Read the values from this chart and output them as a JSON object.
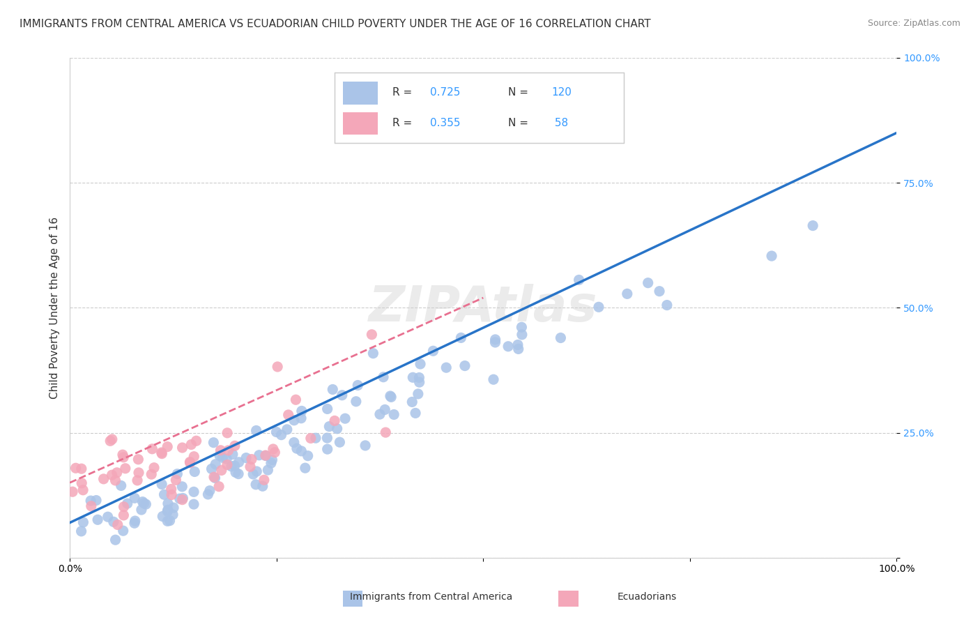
{
  "title": "IMMIGRANTS FROM CENTRAL AMERICA VS ECUADORIAN CHILD POVERTY UNDER THE AGE OF 16 CORRELATION CHART",
  "source": "Source: ZipAtlas.com",
  "ylabel": "Child Poverty Under the Age of 16",
  "xlabel": "",
  "xlim": [
    0,
    1
  ],
  "ylim": [
    0,
    1
  ],
  "yticks": [
    0,
    0.25,
    0.5,
    0.75,
    1.0
  ],
  "ytick_labels": [
    "",
    "25.0%",
    "50.0%",
    "75.0%",
    "100.0%"
  ],
  "xtick_labels": [
    "0.0%",
    "",
    "",
    "",
    "100.0%"
  ],
  "series1_color": "#aac4e8",
  "series2_color": "#f4a7b9",
  "line1_color": "#2874c8",
  "line2_color": "#e87090",
  "R1": 0.725,
  "N1": 120,
  "R2": 0.355,
  "N2": 58,
  "watermark": "ZIPAtlas",
  "background_color": "#ffffff",
  "grid_color": "#cccccc",
  "legend_label1": "Immigrants from Central America",
  "legend_label2": "Ecuadorians",
  "title_fontsize": 11,
  "source_fontsize": 9
}
